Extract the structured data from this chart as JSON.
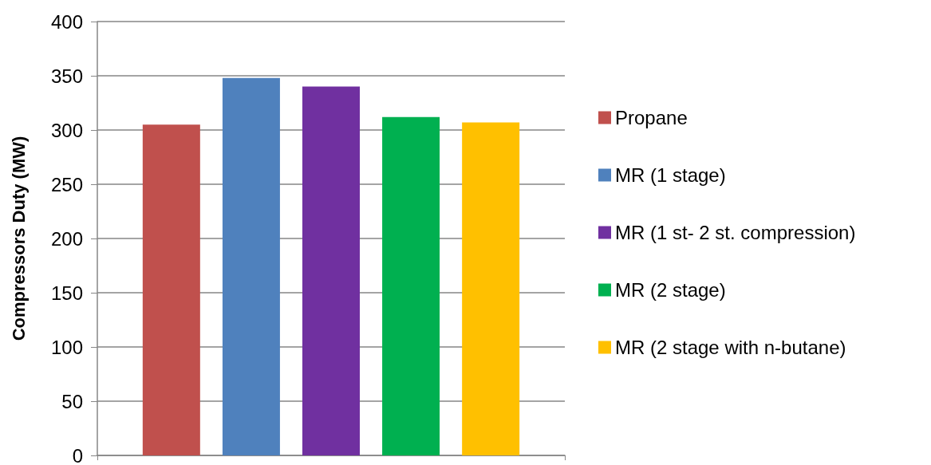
{
  "chart_data": {
    "type": "bar",
    "ylabel": "Compressors Duty (MW)",
    "categories": [
      null
    ],
    "series": [
      {
        "name": "Propane",
        "color": "#c0504d",
        "values": [
          305
        ]
      },
      {
        "name": "MR (1 stage)",
        "color": "#4f81bd",
        "values": [
          348
        ]
      },
      {
        "name": "MR (1 st- 2 st. compression)",
        "color": "#7030a0",
        "values": [
          340
        ]
      },
      {
        "name": "MR (2 stage)",
        "color": "#00b050",
        "values": [
          312
        ]
      },
      {
        "name": "MR (2 stage with n-butane)",
        "color": "#ffc000",
        "values": [
          307
        ]
      }
    ],
    "ylim": [
      0,
      400
    ],
    "yticks": [
      0,
      50,
      100,
      150,
      200,
      250,
      300,
      350,
      400
    ],
    "grid": "y",
    "legend": "right"
  }
}
